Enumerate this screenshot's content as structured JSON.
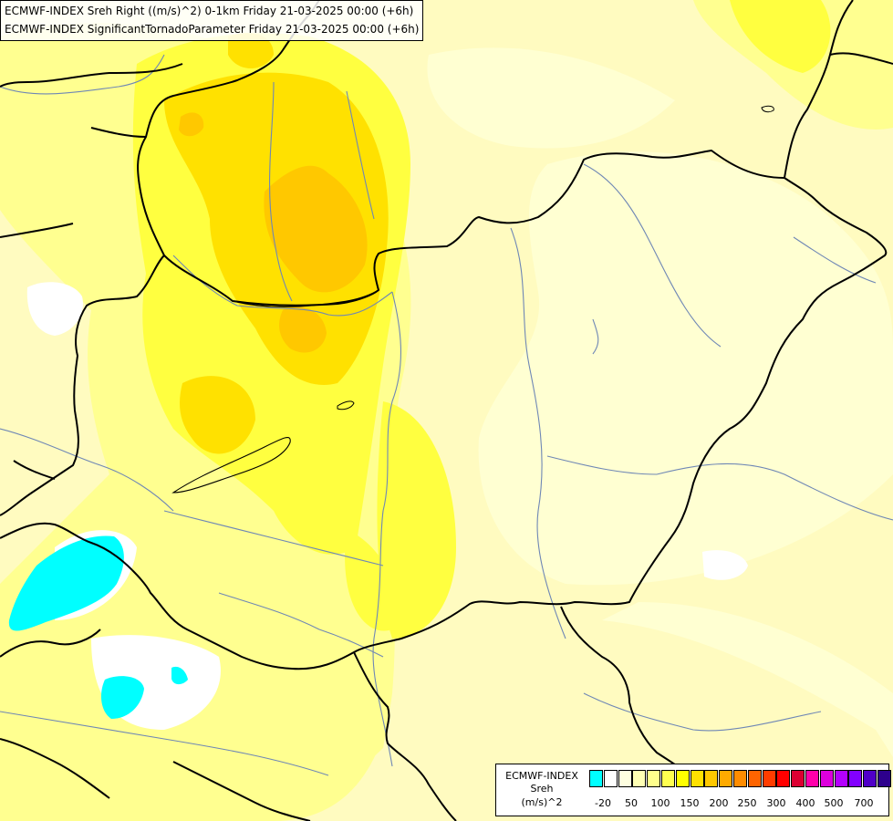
{
  "header": {
    "line1": "ECMWF-INDEX Sreh Right ((m/s)^2) 0-1km Friday 21-03-2025 00:00 (+6h)",
    "line2": "ECMWF-INDEX SignificantTornadoParameter Friday 21-03-2025 00:00 (+6h)"
  },
  "legend": {
    "title1": "ECMWF-INDEX",
    "title2": "Sreh",
    "title3": "(m/s)^2",
    "colors": [
      "#00ffff",
      "#ffffff",
      "#ffffe0",
      "#ffffb4",
      "#ffff8c",
      "#ffff50",
      "#ffff00",
      "#ffe100",
      "#ffc800",
      "#ffaa00",
      "#ff8c00",
      "#ff6400",
      "#ff3c00",
      "#ff0000",
      "#dc0032",
      "#ff00aa",
      "#dc00dc",
      "#b400ff",
      "#8200ff",
      "#5000c8",
      "#2d008c"
    ],
    "ticks": [
      "-20",
      "50",
      "100",
      "150",
      "200",
      "250",
      "300",
      "400",
      "500",
      "700"
    ]
  },
  "map": {
    "colors": {
      "base": "#fffbc0",
      "pale": "#ffffd0",
      "light": "#ffff90",
      "yellow": "#ffff40",
      "gold": "#ffe100",
      "orange": "#ffc800",
      "white": "#ffffff",
      "cyan": "#00ffff",
      "border": "#000000",
      "river": "#6f87b5"
    }
  }
}
